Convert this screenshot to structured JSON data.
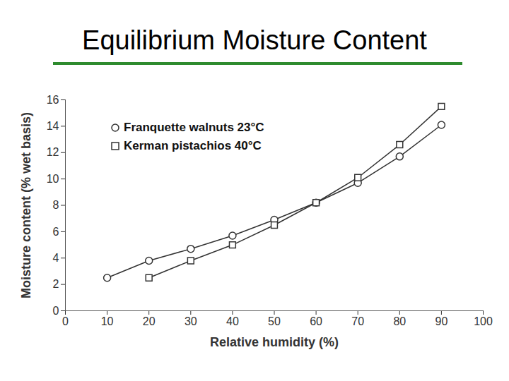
{
  "chart_data": {
    "type": "line",
    "title": "Equilibrium Moisture Content",
    "x_label": "Relative humidity (%)",
    "y_label": "Moisture content (% wet basis)",
    "x": [
      10,
      20,
      30,
      40,
      50,
      60,
      70,
      80,
      90
    ],
    "series": [
      {
        "name": "Franquette walnuts 23°C",
        "color": "#333333",
        "marker": "circle",
        "values": [
          2.5,
          3.8,
          4.7,
          5.7,
          6.9,
          8.2,
          9.7,
          11.7,
          14.1
        ]
      },
      {
        "name": "Kerman pistachios 40°C",
        "color": "#333333",
        "marker": "square",
        "values": [
          null,
          2.5,
          3.8,
          5.0,
          6.5,
          8.2,
          10.1,
          12.6,
          15.5
        ]
      }
    ],
    "xlim": [
      0,
      100
    ],
    "xticks": [
      0,
      10,
      20,
      30,
      40,
      50,
      60,
      70,
      80,
      90,
      100
    ],
    "ylim": [
      0,
      16
    ],
    "yticks": [
      0,
      2,
      4,
      6,
      8,
      10,
      12,
      14,
      16
    ],
    "grid": false,
    "legend": "upper left"
  }
}
